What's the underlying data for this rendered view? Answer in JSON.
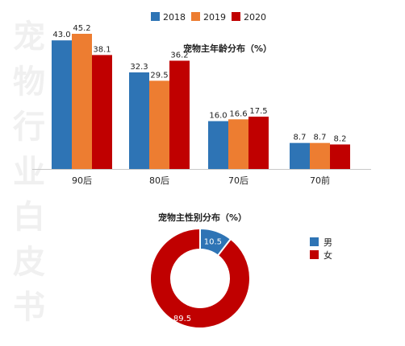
{
  "watermark": "宠物行业白皮书",
  "chart_data": [
    {
      "type": "bar",
      "title": "宠物主年龄分布（%）",
      "categories": [
        "90后",
        "80后",
        "70后",
        "70前"
      ],
      "series": [
        {
          "name": "2018",
          "color": "#2e74b5",
          "values": [
            43.0,
            32.3,
            16.0,
            8.7
          ]
        },
        {
          "name": "2019",
          "color": "#ed7d31",
          "values": [
            45.2,
            29.5,
            16.6,
            8.7
          ]
        },
        {
          "name": "2020",
          "color": "#c00000",
          "values": [
            38.1,
            36.2,
            17.5,
            8.2
          ]
        }
      ],
      "ylim": [
        0,
        45.2
      ],
      "legend": "top",
      "grid": false
    },
    {
      "type": "pie",
      "title": "宠物主性别分布（%）",
      "slices": [
        {
          "name": "男",
          "value": 10.5,
          "color": "#2e74b5"
        },
        {
          "name": "女",
          "value": 89.5,
          "color": "#c00000"
        }
      ],
      "legend": "right"
    }
  ]
}
